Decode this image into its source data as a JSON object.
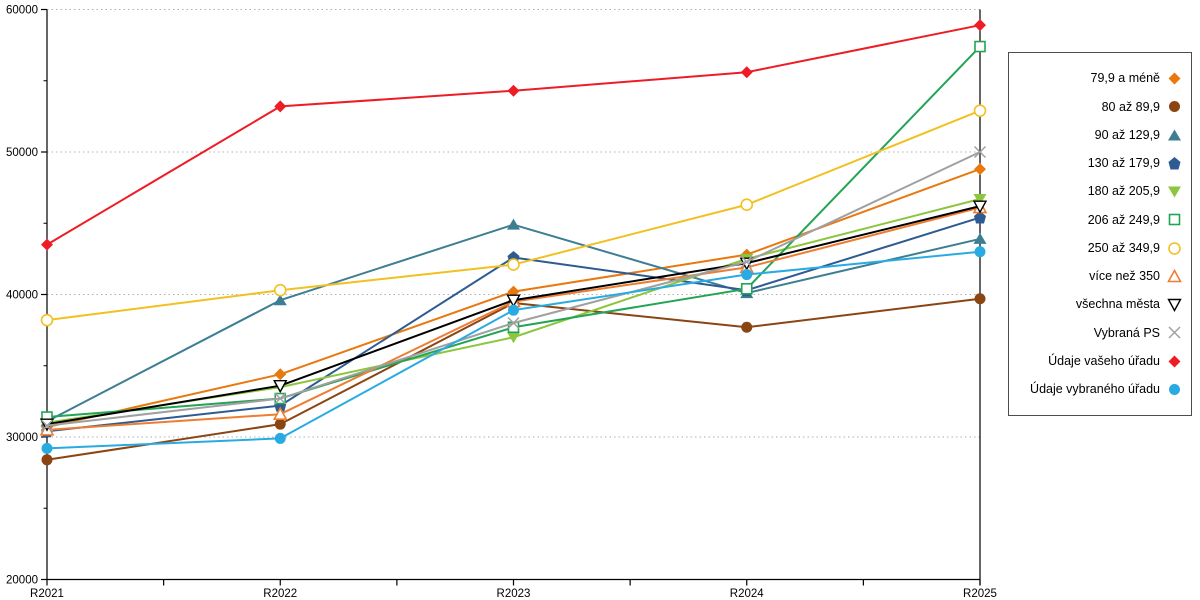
{
  "chart_data": {
    "type": "line",
    "title": "",
    "xlabel": "",
    "ylabel": "",
    "categories": [
      "R2021",
      "R2022",
      "R2023",
      "R2024",
      "R2025"
    ],
    "ylim": [
      20000,
      60000
    ],
    "ytick_step": 10000,
    "ytick_labels": [
      "20000",
      "30000",
      "40000",
      "50000",
      "60000"
    ],
    "grid": "horizontal-dotted",
    "legend_position": "right",
    "series": [
      {
        "name": "79,9 a méně",
        "marker": "diamond-filled",
        "color": "#E8790F",
        "values": [
          30700,
          34400,
          40200,
          42800,
          48800
        ]
      },
      {
        "name": "80 až 89,9",
        "marker": "circle-filled",
        "color": "#8B4513",
        "values": [
          28400,
          30900,
          39400,
          37700,
          39700
        ]
      },
      {
        "name": "90 až 129,9",
        "marker": "triangle-up-filled",
        "color": "#3D7E93",
        "values": [
          31100,
          39600,
          44900,
          40100,
          43900
        ]
      },
      {
        "name": "130 až 179,9",
        "marker": "pentagon-filled",
        "color": "#2F5B93",
        "values": [
          30400,
          32200,
          42600,
          40300,
          45400
        ]
      },
      {
        "name": "180 až 205,9",
        "marker": "triangle-down-filled",
        "color": "#8CC63E",
        "values": [
          31000,
          33500,
          37000,
          42500,
          46700
        ]
      },
      {
        "name": "206 až 249,9",
        "marker": "square-open",
        "color": "#23A455",
        "values": [
          31400,
          32700,
          37700,
          40400,
          57400
        ]
      },
      {
        "name": "250 až 349,9",
        "marker": "circle-open",
        "color": "#F2C021",
        "values": [
          38200,
          40300,
          42100,
          46300,
          52900
        ]
      },
      {
        "name": "více než 350",
        "marker": "triangle-up-open",
        "color": "#ED7D31",
        "values": [
          30500,
          31600,
          39500,
          41900,
          46100
        ]
      },
      {
        "name": "všechna města",
        "marker": "triangle-down-open",
        "color": "#000000",
        "values": [
          30900,
          33600,
          39600,
          42200,
          46200
        ]
      },
      {
        "name": "Vybraná PS",
        "marker": "x",
        "color": "#A0A0A0",
        "values": [
          30800,
          32700,
          38000,
          42300,
          50000
        ]
      },
      {
        "name": "Údaje vašeho úřadu",
        "marker": "diamond-filled",
        "color": "#EE1C25",
        "values": [
          43500,
          53200,
          54300,
          55600,
          58900
        ]
      },
      {
        "name": "Údaje vybraného úřadu",
        "marker": "circle-filled",
        "color": "#29ABE2",
        "values": [
          29200,
          29900,
          38900,
          41400,
          43000
        ]
      }
    ]
  },
  "colors": {
    "axis": "#000000",
    "gridline": "#b0b0b0",
    "legend_border": "#4d4d4d",
    "background": "#ffffff"
  }
}
